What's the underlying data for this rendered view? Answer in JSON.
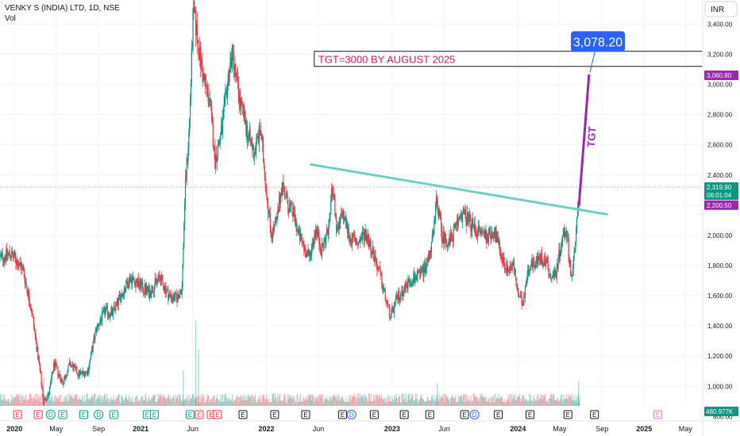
{
  "header": {
    "symbol": "VENKY S (INDIA) LTD, 1D, NSE",
    "vol_label": "Vol"
  },
  "currency_button": "INR",
  "chart_data": {
    "type": "candlestick",
    "title": "VENKY S (INDIA) LTD, 1D, NSE",
    "ylim": [
      870,
      3560
    ],
    "y_ticks": [
      1000,
      1200,
      1400,
      1600,
      1800,
      2000,
      2200,
      2400,
      2600,
      2800,
      3000,
      3200,
      3400
    ],
    "y_tick_labels": [
      "1,000.00",
      "1,200.00",
      "1,400.00",
      "1,600.00",
      "1,800.00",
      "2,000.00",
      "2,200.00",
      "2,400.00",
      "2,600.00",
      "2,800.00",
      "3,000.00",
      "3,200.00",
      "3,400.00"
    ],
    "partial_tick_label": "800.00",
    "x_range": [
      "2019-11-20",
      "2025-06-20"
    ],
    "x_ticks": [
      {
        "date": "2020-01-01",
        "label": "2020",
        "bold": true
      },
      {
        "date": "2020-05-01",
        "label": "May",
        "bold": false
      },
      {
        "date": "2020-09-01",
        "label": "Sep",
        "bold": false
      },
      {
        "date": "2021-01-01",
        "label": "2021",
        "bold": true
      },
      {
        "date": "2021-06-01",
        "label": "Jun",
        "bold": false
      },
      {
        "date": "2022-01-01",
        "label": "2022",
        "bold": true
      },
      {
        "date": "2022-06-01",
        "label": "Jun",
        "bold": false
      },
      {
        "date": "2023-01-01",
        "label": "2023",
        "bold": true
      },
      {
        "date": "2023-06-01",
        "label": "Jun",
        "bold": false
      },
      {
        "date": "2024-01-01",
        "label": "2024",
        "bold": true
      },
      {
        "date": "2024-05-01",
        "label": "May",
        "bold": false
      },
      {
        "date": "2024-09-01",
        "label": "Sep",
        "bold": false
      },
      {
        "date": "2025-01-01",
        "label": "2025",
        "bold": true
      },
      {
        "date": "2025-05-01",
        "label": "May",
        "bold": false
      }
    ],
    "price_anchors": [
      [
        "2019-11-20",
        1850
      ],
      [
        "2019-12-20",
        1880
      ],
      [
        "2020-01-25",
        1780
      ],
      [
        "2020-02-20",
        1500
      ],
      [
        "2020-03-15",
        1100
      ],
      [
        "2020-03-25",
        900
      ],
      [
        "2020-04-10",
        950
      ],
      [
        "2020-04-25",
        1150
      ],
      [
        "2020-05-20",
        1020
      ],
      [
        "2020-06-10",
        1150
      ],
      [
        "2020-07-05",
        1080
      ],
      [
        "2020-08-01",
        1100
      ],
      [
        "2020-08-25",
        1380
      ],
      [
        "2020-09-20",
        1500
      ],
      [
        "2020-10-10",
        1480
      ],
      [
        "2020-11-05",
        1600
      ],
      [
        "2020-12-01",
        1720
      ],
      [
        "2020-12-25",
        1680
      ],
      [
        "2021-01-25",
        1620
      ],
      [
        "2021-02-25",
        1720
      ],
      [
        "2021-03-25",
        1600
      ],
      [
        "2021-04-15",
        1580
      ],
      [
        "2021-05-01",
        1650
      ],
      [
        "2021-05-10",
        2300
      ],
      [
        "2021-05-22",
        2700
      ],
      [
        "2021-06-03",
        3500
      ],
      [
        "2021-06-15",
        3300
      ],
      [
        "2021-07-01",
        3050
      ],
      [
        "2021-07-20",
        2900
      ],
      [
        "2021-08-05",
        2500
      ],
      [
        "2021-08-25",
        2700
      ],
      [
        "2021-09-15",
        3100
      ],
      [
        "2021-09-25",
        3200
      ],
      [
        "2021-10-15",
        2900
      ],
      [
        "2021-11-05",
        2700
      ],
      [
        "2021-11-25",
        2550
      ],
      [
        "2021-12-15",
        2700
      ],
      [
        "2022-01-01",
        2300
      ],
      [
        "2022-01-15",
        2000
      ],
      [
        "2022-02-01",
        2100
      ],
      [
        "2022-02-15",
        2350
      ],
      [
        "2022-03-05",
        2200
      ],
      [
        "2022-03-20",
        2150
      ],
      [
        "2022-04-05",
        2000
      ],
      [
        "2022-04-20",
        1920
      ],
      [
        "2022-05-05",
        1850
      ],
      [
        "2022-05-25",
        2050
      ],
      [
        "2022-06-10",
        1900
      ],
      [
        "2022-07-01",
        2050
      ],
      [
        "2022-07-12",
        2350
      ],
      [
        "2022-07-25",
        2000
      ],
      [
        "2022-08-10",
        2150
      ],
      [
        "2022-09-01",
        1980
      ],
      [
        "2022-09-25",
        1950
      ],
      [
        "2022-10-15",
        2020
      ],
      [
        "2022-11-05",
        1900
      ],
      [
        "2022-11-25",
        1750
      ],
      [
        "2022-12-15",
        1560
      ],
      [
        "2022-12-28",
        1460
      ],
      [
        "2023-01-15",
        1580
      ],
      [
        "2023-02-05",
        1650
      ],
      [
        "2023-03-01",
        1720
      ],
      [
        "2023-03-20",
        1730
      ],
      [
        "2023-04-10",
        1800
      ],
      [
        "2023-05-01",
        2000
      ],
      [
        "2023-05-10",
        2250
      ],
      [
        "2023-05-25",
        2000
      ],
      [
        "2023-06-15",
        1950
      ],
      [
        "2023-07-05",
        2050
      ],
      [
        "2023-07-20",
        2150
      ],
      [
        "2023-08-10",
        2100
      ],
      [
        "2023-08-25",
        2050
      ],
      [
        "2023-09-15",
        2020
      ],
      [
        "2023-10-05",
        2000
      ],
      [
        "2023-10-25",
        2030
      ],
      [
        "2023-11-15",
        1850
      ],
      [
        "2023-12-01",
        1780
      ],
      [
        "2023-12-20",
        1800
      ],
      [
        "2024-01-01",
        1600
      ],
      [
        "2024-01-15",
        1550
      ],
      [
        "2024-02-01",
        1800
      ],
      [
        "2024-02-20",
        1820
      ],
      [
        "2024-03-10",
        1850
      ],
      [
        "2024-03-25",
        1820
      ],
      [
        "2024-04-05",
        1720
      ],
      [
        "2024-04-20",
        1750
      ],
      [
        "2024-05-05",
        1950
      ],
      [
        "2024-05-20",
        2050
      ],
      [
        "2024-06-04",
        1720
      ],
      [
        "2024-06-15",
        1900
      ],
      [
        "2024-06-22",
        2200
      ],
      [
        "2024-06-28",
        2320
      ]
    ],
    "volume_spikes": [
      [
        "2020-03-26",
        480
      ],
      [
        "2021-05-05",
        600
      ],
      [
        "2021-06-10",
        1450
      ],
      [
        "2021-06-18",
        950
      ],
      [
        "2023-05-12",
        380
      ],
      [
        "2024-06-25",
        420
      ]
    ],
    "volume_max": 1500,
    "volume_floor_value": 0,
    "resistance_line": {
      "from": [
        "2022-05-10",
        2470
      ],
      "to": [
        "2024-09-15",
        2140
      ],
      "color": "#6fd1c1"
    },
    "target_arrow": {
      "from": [
        "2024-06-26",
        2200
      ],
      "to": [
        "2024-07-25",
        3060
      ],
      "color": "#9c27b0",
      "label": "TGT"
    },
    "target_box": {
      "text": "TGT=3000 BY AUGUST 2025",
      "value_top": 3220,
      "value_bottom": 3120,
      "x_start": "2022-05-20",
      "color": "#d81b60"
    },
    "target_callout": {
      "text": "3,078.20",
      "at": [
        "2024-08-20",
        3290
      ],
      "pointer_to": [
        "2024-07-28",
        3080
      ],
      "color": "#2962ff"
    },
    "current_price_line": 2319.9,
    "price_labels": [
      {
        "value": 3060.8,
        "text": "3,060.80",
        "color": "#9c27b0"
      },
      {
        "value": 2319.9,
        "text": "2,319.90",
        "subtext": "06:01:04",
        "color": "#089981"
      },
      {
        "value": 2200.5,
        "text": "2,200.50",
        "color": "#9c27b0"
      }
    ],
    "volume_label": "480.977K",
    "event_markers": [
      {
        "date": "2020-01-10",
        "kind": "E",
        "color": "#f23645"
      },
      {
        "date": "2020-03-10",
        "kind": "E",
        "color": "#f23645"
      },
      {
        "date": "2020-04-15",
        "kind": "D",
        "color": "#089981"
      },
      {
        "date": "2020-05-20",
        "kind": "E",
        "color": "#089981"
      },
      {
        "date": "2020-07-20",
        "kind": "E",
        "color": "#089981"
      },
      {
        "date": "2020-09-01",
        "kind": "D",
        "color": "#089981"
      },
      {
        "date": "2020-10-15",
        "kind": "E",
        "color": "#089981"
      },
      {
        "date": "2021-01-20",
        "kind": "E",
        "color": "#089981"
      },
      {
        "date": "2021-02-10",
        "kind": "E",
        "color": "#089981"
      },
      {
        "date": "2021-05-25",
        "kind": "E",
        "color": "#089981"
      },
      {
        "date": "2021-06-20",
        "kind": "E",
        "color": "#f23645"
      },
      {
        "date": "2021-07-25",
        "kind": "E",
        "color": "#f23645"
      },
      {
        "date": "2021-08-12",
        "kind": "E",
        "color": "#f23645"
      },
      {
        "date": "2021-10-25",
        "kind": "E",
        "color": "#131722"
      },
      {
        "date": "2022-01-25",
        "kind": "E",
        "color": "#131722"
      },
      {
        "date": "2022-04-25",
        "kind": "E",
        "color": "#131722"
      },
      {
        "date": "2022-08-10",
        "kind": "E",
        "color": "#131722"
      },
      {
        "date": "2022-09-05",
        "kind": "D",
        "color": "#2962ff"
      },
      {
        "date": "2022-11-10",
        "kind": "E",
        "color": "#131722"
      },
      {
        "date": "2023-02-05",
        "kind": "E",
        "color": "#131722"
      },
      {
        "date": "2023-04-20",
        "kind": "E",
        "color": "#131722"
      },
      {
        "date": "2023-07-30",
        "kind": "E",
        "color": "#131722"
      },
      {
        "date": "2023-08-28",
        "kind": "D",
        "color": "#2962ff"
      },
      {
        "date": "2023-11-05",
        "kind": "E",
        "color": "#131722"
      },
      {
        "date": "2024-02-05",
        "kind": "E",
        "color": "#131722"
      },
      {
        "date": "2024-05-25",
        "kind": "E",
        "color": "#131722"
      },
      {
        "date": "2024-08-10",
        "kind": "E",
        "color": "#131722"
      },
      {
        "date": "2025-02-10",
        "kind": "E",
        "color": "#d16fd6"
      }
    ]
  },
  "colors": {
    "up": "#089981",
    "down": "#f23645",
    "grid": "#f0f3fa",
    "axis_text": "#131722"
  }
}
